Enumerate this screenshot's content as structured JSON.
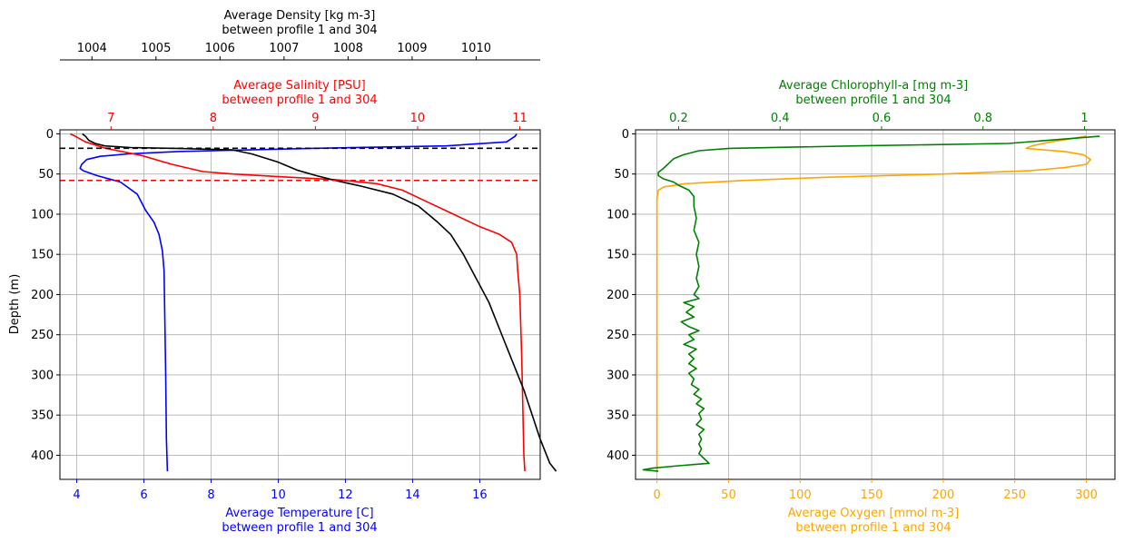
{
  "chart_data": [
    {
      "type": "line",
      "ylabel": "Depth (m)",
      "ylim": [
        430,
        -5
      ],
      "yticks": [
        0,
        50,
        100,
        150,
        200,
        250,
        300,
        350,
        400
      ],
      "grid": true,
      "axes": {
        "temperature": {
          "label": "Average Temperature [C]",
          "label2": "between profile 1 and 304",
          "position": "bottom",
          "lim": [
            3.5,
            17.8
          ],
          "ticks": [
            4,
            6,
            8,
            10,
            12,
            14,
            16
          ],
          "color": "#0000ff"
        },
        "salinity": {
          "label": "Average Salinity [PSU]",
          "label2": "between profile 1 and 304",
          "position": "top",
          "lim": [
            6.5,
            11.2
          ],
          "ticks": [
            7,
            8,
            9,
            10,
            11
          ],
          "color": "#ff0000"
        },
        "density": {
          "label": "Average Density [kg m-3]",
          "label2": "between profile 1 and 304",
          "position": "top-outer",
          "lim": [
            1003.5,
            1011.0
          ],
          "ticks": [
            1004,
            1005,
            1006,
            1007,
            1008,
            1009,
            1010
          ],
          "color": "#000000"
        }
      },
      "series": [
        {
          "axis": "temperature",
          "color": "#0000ff",
          "points": [
            [
              17.1,
              0
            ],
            [
              17.05,
              3
            ],
            [
              16.8,
              10
            ],
            [
              15,
              15
            ],
            [
              11,
              18
            ],
            [
              7,
              22
            ],
            [
              5.5,
              25
            ],
            [
              4.7,
              28
            ],
            [
              4.3,
              32
            ],
            [
              4.15,
              38
            ],
            [
              4.1,
              43
            ],
            [
              4.2,
              46
            ],
            [
              4.6,
              52
            ],
            [
              5.3,
              60
            ],
            [
              5.8,
              75
            ],
            [
              6.05,
              95
            ],
            [
              6.3,
              110
            ],
            [
              6.45,
              125
            ],
            [
              6.55,
              145
            ],
            [
              6.6,
              170
            ],
            [
              6.62,
              220
            ],
            [
              6.65,
              300
            ],
            [
              6.67,
              380
            ],
            [
              6.7,
              420
            ]
          ]
        },
        {
          "axis": "salinity",
          "color": "#ff0000",
          "points": [
            [
              6.6,
              0
            ],
            [
              6.65,
              3
            ],
            [
              6.75,
              10
            ],
            [
              6.95,
              18
            ],
            [
              7.3,
              27
            ],
            [
              7.6,
              38
            ],
            [
              7.9,
              47
            ],
            [
              8.2,
              50
            ],
            [
              8.6,
              53
            ],
            [
              9.2,
              57
            ],
            [
              9.6,
              62
            ],
            [
              9.85,
              70
            ],
            [
              10.1,
              85
            ],
            [
              10.35,
              100
            ],
            [
              10.6,
              115
            ],
            [
              10.8,
              125
            ],
            [
              10.92,
              135
            ],
            [
              10.97,
              150
            ],
            [
              10.98,
              170
            ],
            [
              11.0,
              200
            ],
            [
              11.02,
              280
            ],
            [
              11.04,
              400
            ],
            [
              11.05,
              420
            ]
          ]
        },
        {
          "axis": "density",
          "color": "#000000",
          "points": [
            [
              1003.85,
              0
            ],
            [
              1003.9,
              3
            ],
            [
              1003.95,
              8
            ],
            [
              1004.05,
              12
            ],
            [
              1004.2,
              15
            ],
            [
              1004.6,
              17
            ],
            [
              1005.3,
              18
            ],
            [
              1006.2,
              20
            ],
            [
              1006.5,
              25
            ],
            [
              1006.9,
              35
            ],
            [
              1007.2,
              45
            ],
            [
              1007.5,
              52
            ],
            [
              1007.8,
              58
            ],
            [
              1008.2,
              65
            ],
            [
              1008.7,
              75
            ],
            [
              1009.1,
              90
            ],
            [
              1009.4,
              110
            ],
            [
              1009.6,
              125
            ],
            [
              1009.8,
              150
            ],
            [
              1010.0,
              180
            ],
            [
              1010.2,
              210
            ],
            [
              1010.45,
              260
            ],
            [
              1010.75,
              320
            ],
            [
              1011.0,
              380
            ],
            [
              1011.15,
              410
            ],
            [
              1011.25,
              420
            ]
          ]
        }
      ],
      "hlines": [
        {
          "y": 18,
          "color": "#000000",
          "style": "dashed"
        },
        {
          "y": 58,
          "color": "#ff0000",
          "style": "dashed"
        }
      ]
    },
    {
      "type": "line",
      "ylabel": "",
      "ylim": [
        430,
        -5
      ],
      "yticks": [
        0,
        50,
        100,
        150,
        200,
        250,
        300,
        350,
        400
      ],
      "grid": true,
      "axes": {
        "oxygen": {
          "label": "Average Oxygen [mmol m-3]",
          "label2": "between profile 1 and 304",
          "position": "bottom",
          "lim": [
            -15,
            320
          ],
          "ticks": [
            0,
            50,
            100,
            150,
            200,
            250,
            300
          ],
          "color": "#ffa500"
        },
        "chlorophyll": {
          "label": "Average Chlorophyll-a [mg m-3]",
          "label2": "between profile 1 and 304",
          "position": "top",
          "lim": [
            0.115,
            1.06
          ],
          "ticks": [
            0.2,
            0.4,
            0.6,
            0.8,
            1.0
          ],
          "color": "#008000"
        }
      },
      "series": [
        {
          "axis": "oxygen",
          "color": "#ffa500",
          "points": [
            [
              300,
              3
            ],
            [
              290,
              6
            ],
            [
              275,
              10
            ],
            [
              262,
              15
            ],
            [
              258,
              18
            ],
            [
              270,
              20
            ],
            [
              285,
              22
            ],
            [
              298,
              26
            ],
            [
              303,
              32
            ],
            [
              300,
              38
            ],
            [
              285,
              42
            ],
            [
              260,
              46
            ],
            [
              200,
              50
            ],
            [
              120,
              54
            ],
            [
              60,
              58
            ],
            [
              20,
              62
            ],
            [
              5,
              66
            ],
            [
              1,
              70
            ],
            [
              0,
              80
            ],
            [
              0,
              150
            ],
            [
              0,
              250
            ],
            [
              0,
              350
            ],
            [
              0,
              420
            ]
          ]
        },
        {
          "axis": "chlorophyll",
          "color": "#008000",
          "points": [
            [
              1.03,
              3
            ],
            [
              0.85,
              12
            ],
            [
              0.55,
              15
            ],
            [
              0.3,
              18
            ],
            [
              0.24,
              21
            ],
            [
              0.21,
              26
            ],
            [
              0.19,
              31
            ],
            [
              0.18,
              37
            ],
            [
              0.17,
              43
            ],
            [
              0.16,
              48
            ],
            [
              0.16,
              52
            ],
            [
              0.17,
              56
            ],
            [
              0.19,
              60
            ],
            [
              0.2,
              64
            ],
            [
              0.22,
              70
            ],
            [
              0.23,
              78
            ],
            [
              0.23,
              90
            ],
            [
              0.235,
              105
            ],
            [
              0.23,
              120
            ],
            [
              0.24,
              135
            ],
            [
              0.235,
              150
            ],
            [
              0.24,
              165
            ],
            [
              0.235,
              180
            ],
            [
              0.24,
              190
            ],
            [
              0.23,
              200
            ],
            [
              0.24,
              205
            ],
            [
              0.21,
              210
            ],
            [
              0.23,
              215
            ],
            [
              0.215,
              222
            ],
            [
              0.23,
              228
            ],
            [
              0.205,
              234
            ],
            [
              0.22,
              240
            ],
            [
              0.24,
              245
            ],
            [
              0.22,
              250
            ],
            [
              0.23,
              256
            ],
            [
              0.21,
              262
            ],
            [
              0.235,
              268
            ],
            [
              0.22,
              274
            ],
            [
              0.23,
              280
            ],
            [
              0.22,
              286
            ],
            [
              0.235,
              292
            ],
            [
              0.22,
              298
            ],
            [
              0.23,
              305
            ],
            [
              0.225,
              312
            ],
            [
              0.24,
              318
            ],
            [
              0.23,
              324
            ],
            [
              0.245,
              330
            ],
            [
              0.235,
              336
            ],
            [
              0.25,
              342
            ],
            [
              0.24,
              348
            ],
            [
              0.245,
              355
            ],
            [
              0.235,
              362
            ],
            [
              0.25,
              368
            ],
            [
              0.24,
              374
            ],
            [
              0.245,
              380
            ],
            [
              0.24,
              386
            ],
            [
              0.245,
              392
            ],
            [
              0.24,
              398
            ],
            [
              0.25,
              404
            ],
            [
              0.26,
              410
            ],
            [
              0.2,
              413
            ],
            [
              0.15,
              416
            ],
            [
              0.13,
              418
            ],
            [
              0.16,
              420
            ]
          ]
        }
      ],
      "hlines": []
    }
  ]
}
